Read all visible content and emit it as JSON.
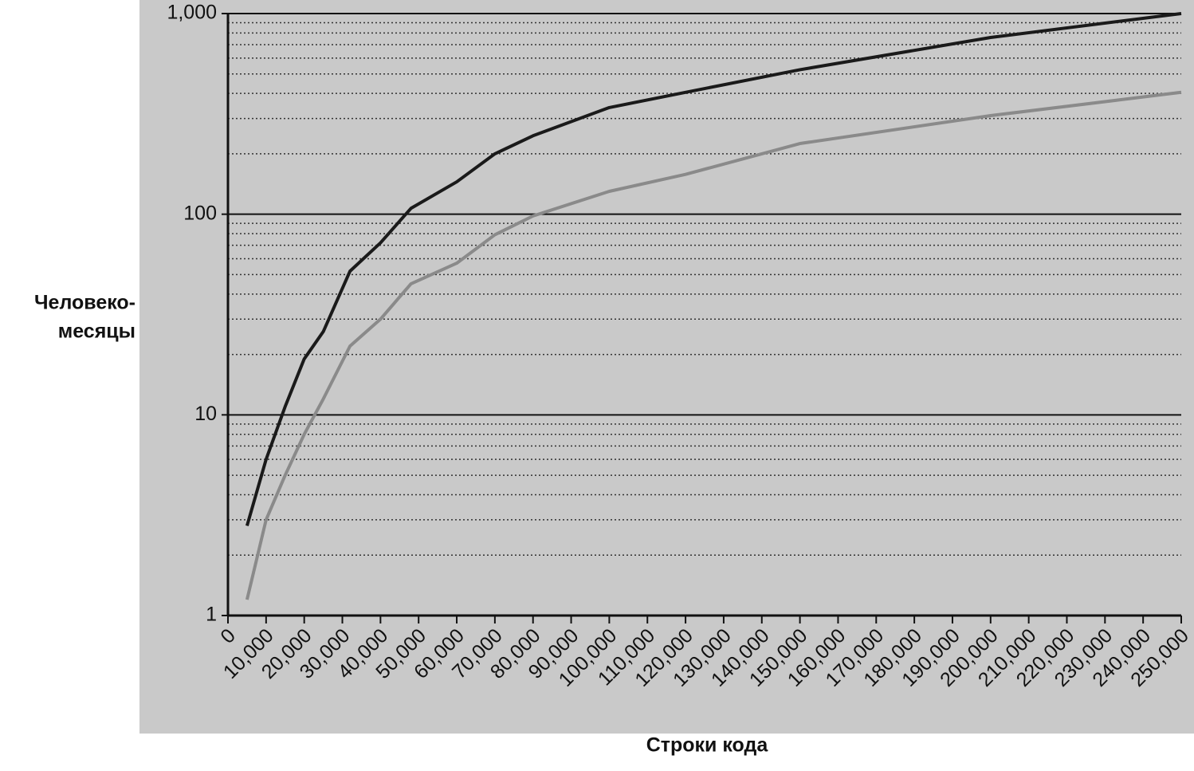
{
  "chart_data": {
    "type": "line",
    "x_label": "Строки кода",
    "y_label": [
      "Человеко-",
      "месяцы"
    ],
    "log_y": true,
    "grid": true,
    "xlim": [
      0,
      250000
    ],
    "xticks": [
      0,
      {
        "value": 10000,
        "label": "10,000"
      },
      {
        "value": 20000,
        "label": "20,000"
      },
      {
        "value": 30000,
        "label": "30,000"
      },
      {
        "value": 40000,
        "label": "40,000"
      },
      {
        "value": 50000,
        "label": "50,000"
      },
      {
        "value": 60000,
        "label": "60,000"
      },
      {
        "value": 70000,
        "label": "70,000"
      },
      {
        "value": 80000,
        "label": "80,000"
      },
      {
        "value": 90000,
        "label": "90,000"
      },
      {
        "value": 100000,
        "label": "100,000"
      },
      {
        "value": 110000,
        "label": "110,000"
      },
      {
        "value": 120000,
        "label": "120,000"
      },
      {
        "value": 130000,
        "label": "130,000"
      },
      {
        "value": 140000,
        "label": "140,000"
      },
      {
        "value": 150000,
        "label": "150,000"
      },
      {
        "value": 160000,
        "label": "160,000"
      },
      {
        "value": 170000,
        "label": "170,000"
      },
      {
        "value": 180000,
        "label": "180,000"
      },
      {
        "value": 190000,
        "label": "190,000"
      },
      {
        "value": 200000,
        "label": "200,000"
      },
      {
        "value": 210000,
        "label": "210,000"
      },
      {
        "value": 220000,
        "label": "220,000"
      },
      {
        "value": 230000,
        "label": "230,000"
      },
      {
        "value": 240000,
        "label": "240,000"
      },
      {
        "value": 250000,
        "label": "250,000"
      }
    ],
    "ylim": [
      1,
      1000
    ],
    "yticks": [
      1,
      10,
      100,
      {
        "value": 1000,
        "label": "1,000"
      }
    ],
    "y_minor_ticks": [
      2,
      3,
      4,
      5,
      6,
      7,
      8,
      9,
      20,
      30,
      40,
      50,
      60,
      70,
      80,
      90,
      200,
      300,
      400,
      500,
      600,
      700,
      800,
      900
    ],
    "x": [
      5000,
      10000,
      15000,
      20000,
      25000,
      32000,
      40000,
      48000,
      60000,
      70000,
      80000,
      100000,
      120000,
      150000,
      200000,
      250000
    ],
    "series": [
      {
        "color": "#1a1a1a",
        "values": [
          2.8,
          6,
          11,
          19,
          26,
          52,
          72,
          107,
          145,
          200,
          246,
          340,
          405,
          525,
          760,
          1000
        ]
      },
      {
        "color": "#8a8a8a",
        "values": [
          1.2,
          3,
          5,
          8,
          12,
          22,
          30,
          45,
          57,
          79,
          98,
          130,
          158,
          225,
          310,
          405
        ]
      }
    ]
  }
}
